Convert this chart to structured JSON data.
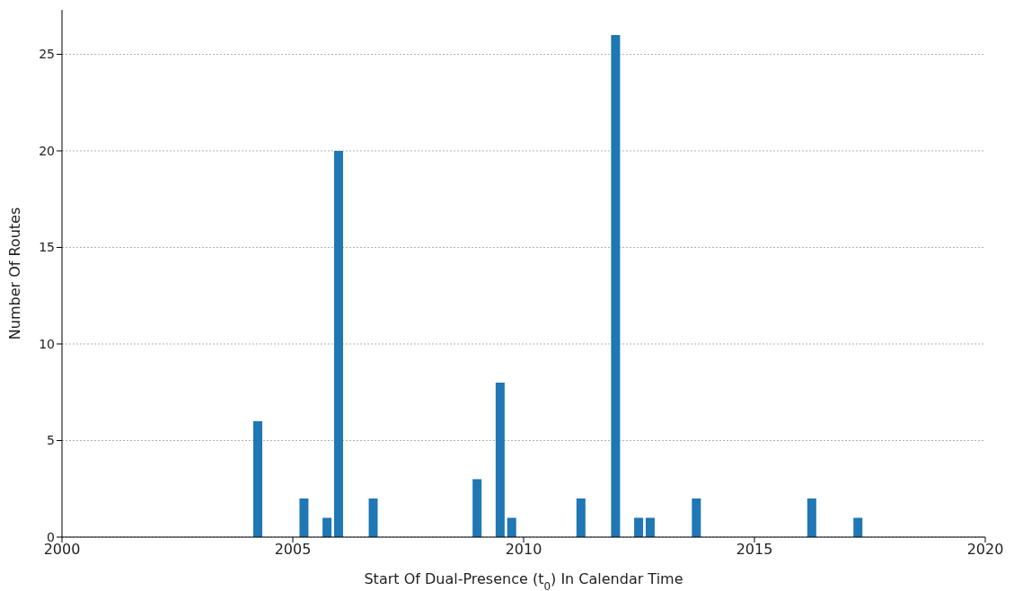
{
  "chart_data": {
    "type": "bar",
    "xlabel": "Start Of Dual-Presence (t$_{0}$) In Calendar Time",
    "ylabel": "Number Of Routes",
    "x": [
      2004.25,
      2005.25,
      2005.75,
      2006.0,
      2006.75,
      2009.0,
      2009.5,
      2009.75,
      2011.25,
      2012.0,
      2012.5,
      2012.75,
      2013.75,
      2016.25,
      2017.25
    ],
    "values": [
      6,
      2,
      1,
      20,
      2,
      3,
      8,
      1,
      2,
      26,
      1,
      1,
      2,
      2,
      1
    ],
    "color": "#1f77b4",
    "xlim": [
      2000,
      2020
    ],
    "xticks": [
      2000,
      2005,
      2010,
      2015,
      2020
    ],
    "ylim": [
      0,
      27.3
    ],
    "yticks": [
      0,
      5,
      10,
      15,
      20,
      25
    ],
    "grid": "y"
  }
}
